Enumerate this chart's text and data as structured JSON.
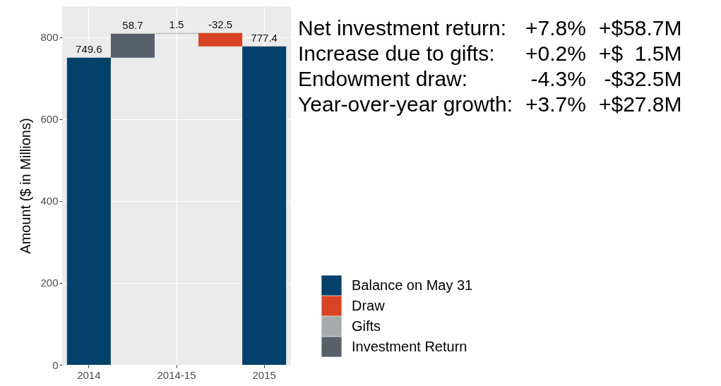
{
  "chart_data": {
    "type": "bar",
    "ylabel": "Amount ($ in Millions)",
    "categories": [
      "2014",
      null,
      "2014-15",
      null,
      "2015"
    ],
    "series": [
      {
        "name": "Balance on May 31",
        "color": "#03416a",
        "values": [
          749.6,
          null,
          null,
          null,
          777.4
        ],
        "base": [
          0,
          null,
          null,
          null,
          0
        ]
      },
      {
        "name": "Draw",
        "color": "#d84423",
        "values": [
          null,
          null,
          null,
          -32.5,
          null
        ],
        "base": [
          null,
          null,
          null,
          809.8,
          null
        ]
      },
      {
        "name": "Gifts",
        "color": "#a5abac",
        "values": [
          null,
          null,
          1.5,
          null,
          null
        ],
        "base": [
          null,
          null,
          808.3,
          null,
          null
        ]
      },
      {
        "name": "Investment Return",
        "color": "#58616b",
        "values": [
          null,
          58.7,
          null,
          null,
          null
        ],
        "base": [
          null,
          749.6,
          null,
          null,
          null
        ]
      }
    ],
    "ylim": [
      0,
      875
    ],
    "yticks": [
      0,
      200,
      400,
      600,
      800
    ],
    "grid": true,
    "legend": "bottom right",
    "data_labels": true,
    "annotations": [
      "Net investment return:",
      "+7.8%",
      "+$58.7M",
      "Increase due to gifts:",
      "+0.2%",
      "+$  1.5M",
      "Endowment draw:",
      "-4.3%",
      "-$32.5M",
      "Year-over-year growth:",
      "+3.7%",
      "+$27.8M"
    ]
  }
}
